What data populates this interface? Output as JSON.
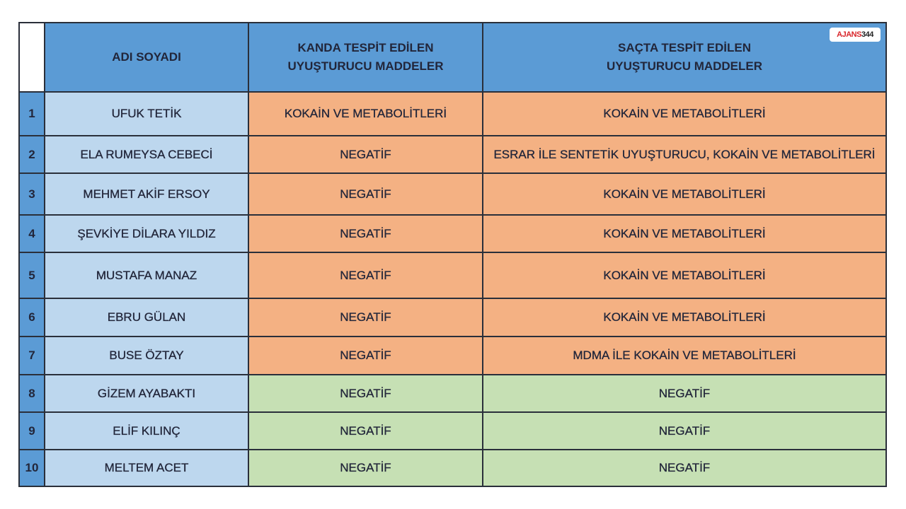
{
  "logo": {
    "text_a": "AJANS",
    "text_b": "344"
  },
  "headers": {
    "name": "ADI SOYADI",
    "blood_1": "KANDA TESPİT EDİLEN",
    "blood_2": "UYUŞTURUCU MADDELER",
    "hair_1": "SAÇTA TESPİT EDİLEN",
    "hair_2": "UYUŞTURUCU MADDELER"
  },
  "colors": {
    "header": "#5b9bd5",
    "name": "#bdd7ee",
    "positive": "#f4b183",
    "negative": "#c6e0b4"
  },
  "rows": [
    {
      "no": "1",
      "name": "UFUK TETİK",
      "blood": "KOKAİN VE METABOLİTLERİ",
      "hair": "KOKAİN VE METABOLİTLERİ",
      "status": "positive"
    },
    {
      "no": "2",
      "name": "ELA RUMEYSA CEBECİ",
      "blood": "NEGATİF",
      "hair": "ESRAR İLE SENTETİK UYUŞTURUCU, KOKAİN VE METABOLİTLERİ",
      "status": "positive"
    },
    {
      "no": "3",
      "name": "MEHMET AKİF ERSOY",
      "blood": "NEGATİF",
      "hair": "KOKAİN VE METABOLİTLERİ",
      "status": "positive"
    },
    {
      "no": "4",
      "name": "ŞEVKİYE DİLARA YILDIZ",
      "blood": "NEGATİF",
      "hair": "KOKAİN VE METABOLİTLERİ",
      "status": "positive"
    },
    {
      "no": "5",
      "name": "MUSTAFA MANAZ",
      "blood": "NEGATİF",
      "hair": "KOKAİN VE METABOLİTLERİ",
      "status": "positive"
    },
    {
      "no": "6",
      "name": "EBRU GÜLAN",
      "blood": "NEGATİF",
      "hair": "KOKAİN VE METABOLİTLERİ",
      "status": "positive"
    },
    {
      "no": "7",
      "name": "BUSE ÖZTAY",
      "blood": "NEGATİF",
      "hair": "MDMA İLE KOKAİN VE METABOLİTLERİ",
      "status": "positive"
    },
    {
      "no": "8",
      "name": "GİZEM AYABAKTI",
      "blood": "NEGATİF",
      "hair": "NEGATİF",
      "status": "negative"
    },
    {
      "no": "9",
      "name": "ELİF KILINÇ",
      "blood": "NEGATİF",
      "hair": "NEGATİF",
      "status": "negative"
    },
    {
      "no": "10",
      "name": "MELTEM ACET",
      "blood": "NEGATİF",
      "hair": "NEGATİF",
      "status": "negative"
    }
  ]
}
